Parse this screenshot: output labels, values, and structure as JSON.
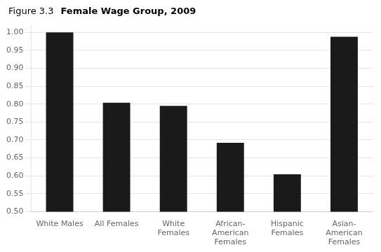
{
  "chart_data": {
    "type": "bar",
    "title": "Figure 3.3",
    "subtitle": "Female Wage Group, 2009",
    "categories": [
      "White Males",
      "All Females",
      "White\nFemales",
      "African-\nAmerican\nFemales",
      "Hispanic\nFemales",
      "Asian-\nAmerican\nFemales"
    ],
    "values": [
      1.0,
      0.804,
      0.795,
      0.692,
      0.604,
      0.988
    ],
    "color": "#1a1a1a",
    "ylim": [
      0.5,
      1.02
    ],
    "yticks": [
      {
        "value": 0.5,
        "label": "0.50"
      },
      {
        "value": 0.55,
        "label": "0.55"
      },
      {
        "value": 0.6,
        "label": "0.60"
      },
      {
        "value": 0.65,
        "label": "0.65"
      },
      {
        "value": 0.7,
        "label": "0.70"
      },
      {
        "value": 0.75,
        "label": "0.75"
      },
      {
        "value": 0.8,
        "label": "0.80"
      },
      {
        "value": 0.85,
        "label": "0.85"
      },
      {
        "value": 0.9,
        "label": "0.90"
      },
      {
        "value": 0.95,
        "label": "0.95"
      },
      {
        "value": 1.0,
        "label": "1.00"
      }
    ],
    "grid": true
  }
}
